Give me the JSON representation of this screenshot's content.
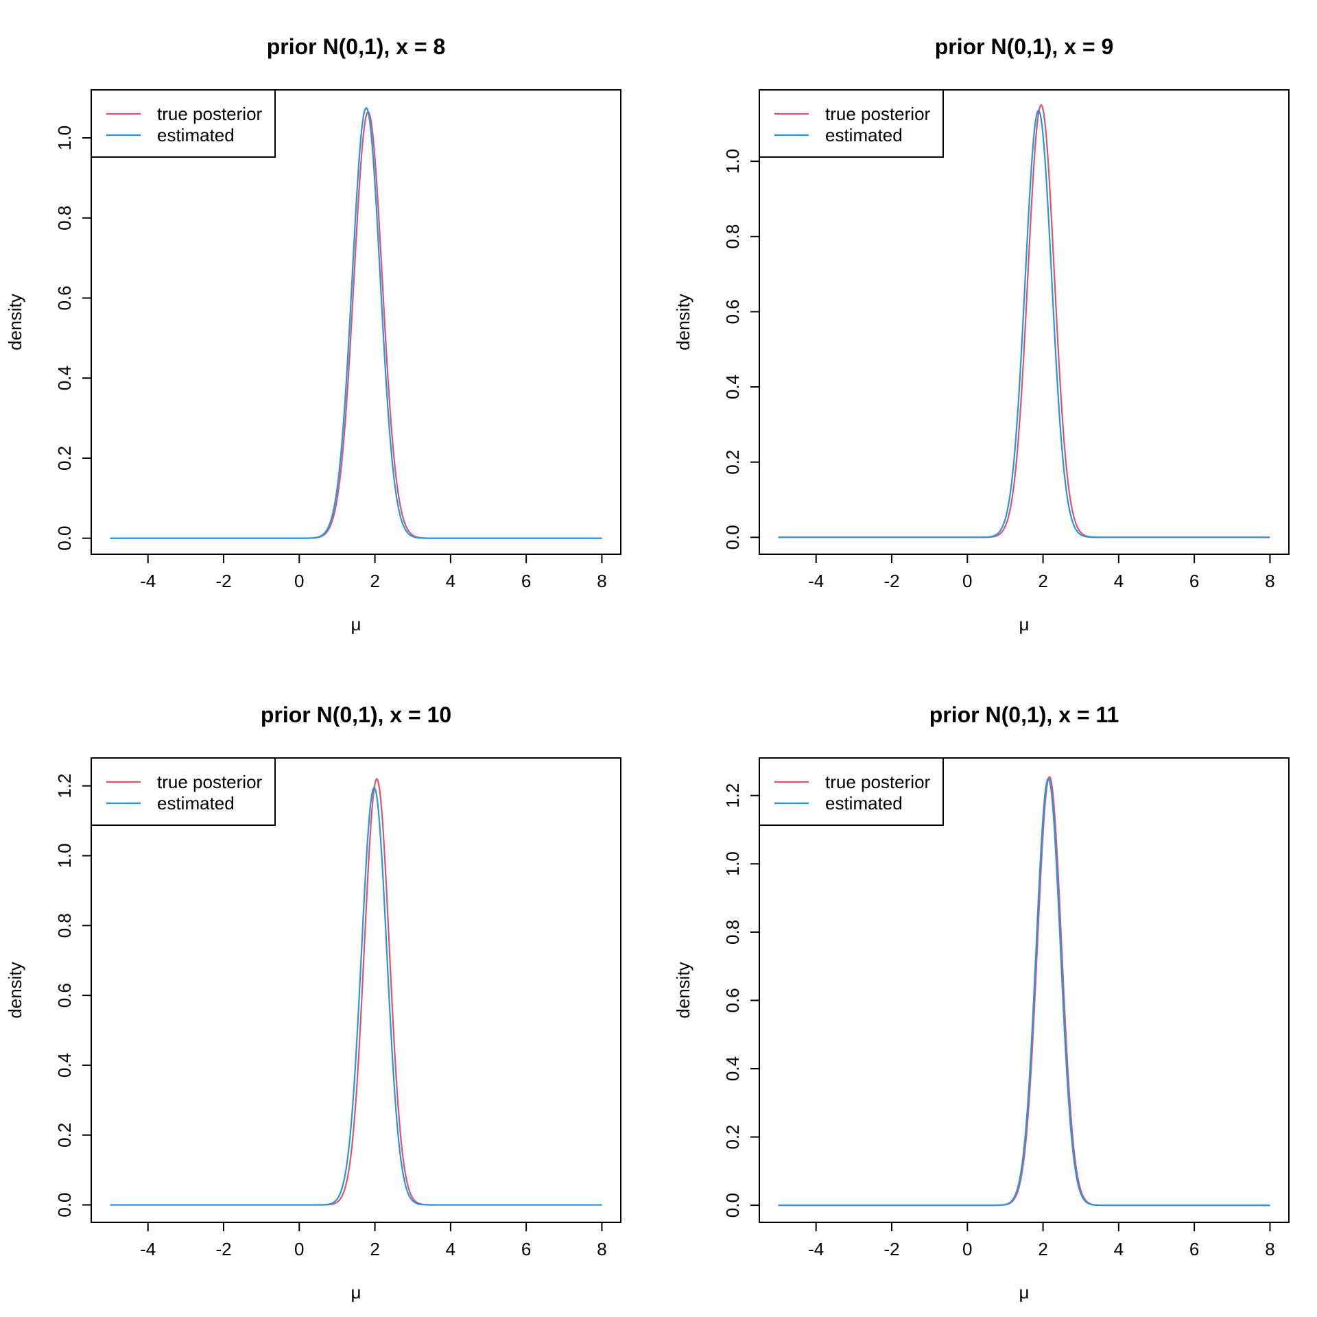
{
  "colors": {
    "true_posterior": "#DF536B",
    "estimated": "#2297E6",
    "axis": "#000000"
  },
  "chart_data": [
    {
      "type": "line",
      "title": "prior N(0,1), x = 8",
      "xlabel": "μ",
      "ylabel": "density",
      "xlim": [
        -5.5,
        8.5
      ],
      "ylim": [
        -0.04,
        1.12
      ],
      "xticks": [
        -4,
        -2,
        0,
        2,
        4,
        6,
        8
      ],
      "yticks": [
        0.0,
        0.2,
        0.4,
        0.6,
        0.8,
        1.0
      ],
      "xtick_labels": [
        "-4",
        "-2",
        "0",
        "2",
        "4",
        "6",
        "8"
      ],
      "ytick_labels": [
        "0.0",
        "0.2",
        "0.4",
        "0.6",
        "0.8",
        "1.0"
      ],
      "legend": {
        "position": "top-left",
        "entries": [
          "true posterior",
          "estimated"
        ]
      },
      "grid": false,
      "x_range": [
        -5,
        8
      ],
      "series": [
        {
          "name": "true posterior",
          "color": "#DF536B",
          "peak_x": 1.82,
          "peak_y": 1.065,
          "sd": 0.375
        },
        {
          "name": "estimated",
          "color": "#2297E6",
          "peak_x": 1.77,
          "peak_y": 1.075,
          "sd": 0.37
        }
      ]
    },
    {
      "type": "line",
      "title": "prior N(0,1), x = 9",
      "xlabel": "μ",
      "ylabel": "density",
      "xlim": [
        -5.5,
        8.5
      ],
      "ylim": [
        -0.045,
        1.19
      ],
      "xticks": [
        -4,
        -2,
        0,
        2,
        4,
        6,
        8
      ],
      "yticks": [
        0.0,
        0.2,
        0.4,
        0.6,
        0.8,
        1.0
      ],
      "xtick_labels": [
        "-4",
        "-2",
        "0",
        "2",
        "4",
        "6",
        "8"
      ],
      "ytick_labels": [
        "0.0",
        "0.2",
        "0.4",
        "0.6",
        "0.8",
        "1.0"
      ],
      "legend": {
        "position": "top-left",
        "entries": [
          "true posterior",
          "estimated"
        ]
      },
      "grid": false,
      "x_range": [
        -5,
        8
      ],
      "series": [
        {
          "name": "true posterior",
          "color": "#DF536B",
          "peak_x": 1.95,
          "peak_y": 1.15,
          "sd": 0.35
        },
        {
          "name": "estimated",
          "color": "#2297E6",
          "peak_x": 1.88,
          "peak_y": 1.135,
          "sd": 0.35
        }
      ]
    },
    {
      "type": "line",
      "title": "prior N(0,1), x = 10",
      "xlabel": "μ",
      "ylabel": "density",
      "xlim": [
        -5.5,
        8.5
      ],
      "ylim": [
        -0.05,
        1.28
      ],
      "xticks": [
        -4,
        -2,
        0,
        2,
        4,
        6,
        8
      ],
      "yticks": [
        0.0,
        0.2,
        0.4,
        0.6,
        0.8,
        1.0,
        1.2
      ],
      "xtick_labels": [
        "-4",
        "-2",
        "0",
        "2",
        "4",
        "6",
        "8"
      ],
      "ytick_labels": [
        "0.0",
        "0.2",
        "0.4",
        "0.6",
        "0.8",
        "1.0",
        "1.2"
      ],
      "legend": {
        "position": "top-left",
        "entries": [
          "true posterior",
          "estimated"
        ]
      },
      "grid": false,
      "x_range": [
        -5,
        8
      ],
      "series": [
        {
          "name": "true posterior",
          "color": "#DF536B",
          "peak_x": 2.05,
          "peak_y": 1.22,
          "sd": 0.33
        },
        {
          "name": "estimated",
          "color": "#2297E6",
          "peak_x": 1.98,
          "peak_y": 1.195,
          "sd": 0.335
        }
      ]
    },
    {
      "type": "line",
      "title": "prior N(0,1), x = 11",
      "xlabel": "μ",
      "ylabel": "density",
      "xlim": [
        -5.5,
        8.5
      ],
      "ylim": [
        -0.05,
        1.31
      ],
      "xticks": [
        -4,
        -2,
        0,
        2,
        4,
        6,
        8
      ],
      "yticks": [
        0.0,
        0.2,
        0.4,
        0.6,
        0.8,
        1.0,
        1.2
      ],
      "xtick_labels": [
        "-4",
        "-2",
        "0",
        "2",
        "4",
        "6",
        "8"
      ],
      "ytick_labels": [
        "0.0",
        "0.2",
        "0.4",
        "0.6",
        "0.8",
        "1.0",
        "1.2"
      ],
      "legend": {
        "position": "top-left",
        "entries": [
          "true posterior",
          "estimated"
        ]
      },
      "grid": false,
      "x_range": [
        -5,
        8
      ],
      "series": [
        {
          "name": "true posterior",
          "color": "#DF536B",
          "peak_x": 2.17,
          "peak_y": 1.255,
          "sd": 0.32
        },
        {
          "name": "estimated",
          "color": "#2297E6",
          "peak_x": 2.14,
          "peak_y": 1.25,
          "sd": 0.32
        }
      ]
    }
  ]
}
